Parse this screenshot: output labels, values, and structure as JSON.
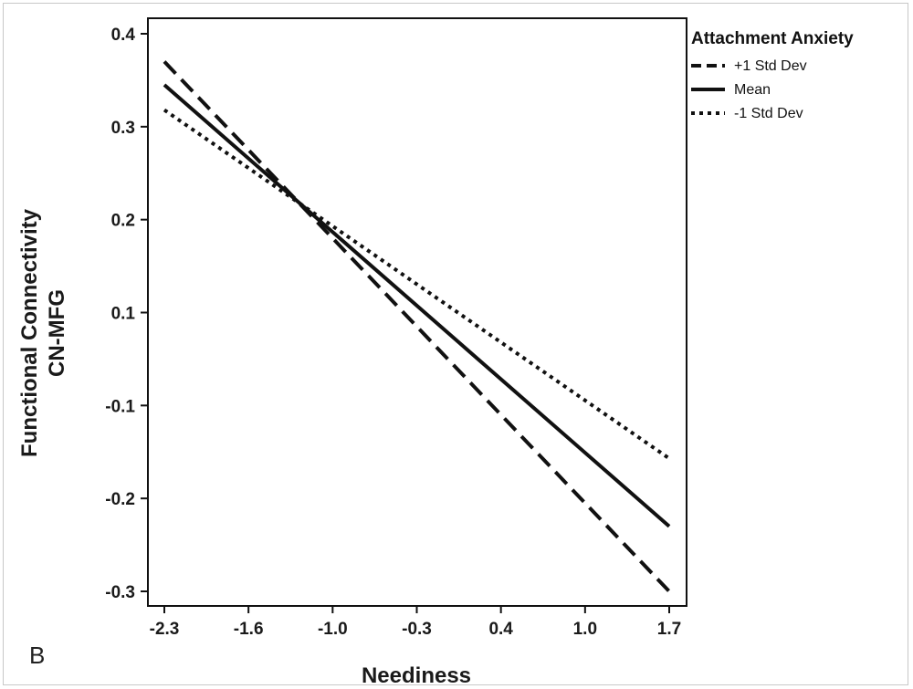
{
  "panel_label": "B",
  "chart_data": {
    "type": "line",
    "ylabel_lines": [
      "Functional Connectivity",
      "CN-MFG"
    ],
    "xlabel": "Neediness",
    "x_ticks": [
      "-2.3",
      "-1.6",
      "-1.0",
      "-0.3",
      "0.4",
      "1.0",
      "1.7"
    ],
    "y_ticks": [
      "0.4",
      "0.3",
      "0.2",
      "0.1",
      "-0.1",
      "-0.2",
      "-0.3"
    ],
    "legend": {
      "title": "Attachment Anxiety",
      "placement": "outside-right"
    },
    "xlim": [
      -2.3,
      1.7
    ],
    "series": [
      {
        "name": "+1 Std Dev",
        "style": "dashed",
        "x": [
          -2.3,
          1.7
        ],
        "y": [
          0.37,
          -0.3
        ]
      },
      {
        "name": "Mean",
        "style": "solid",
        "x": [
          -2.3,
          1.7
        ],
        "y": [
          0.345,
          -0.23
        ]
      },
      {
        "name": "-1 Std Dev",
        "style": "dotted",
        "x": [
          -2.3,
          1.7
        ],
        "y": [
          0.318,
          -0.157
        ]
      }
    ],
    "grid": false,
    "colors": {
      "line": "#111111",
      "axis": "#111111"
    }
  }
}
